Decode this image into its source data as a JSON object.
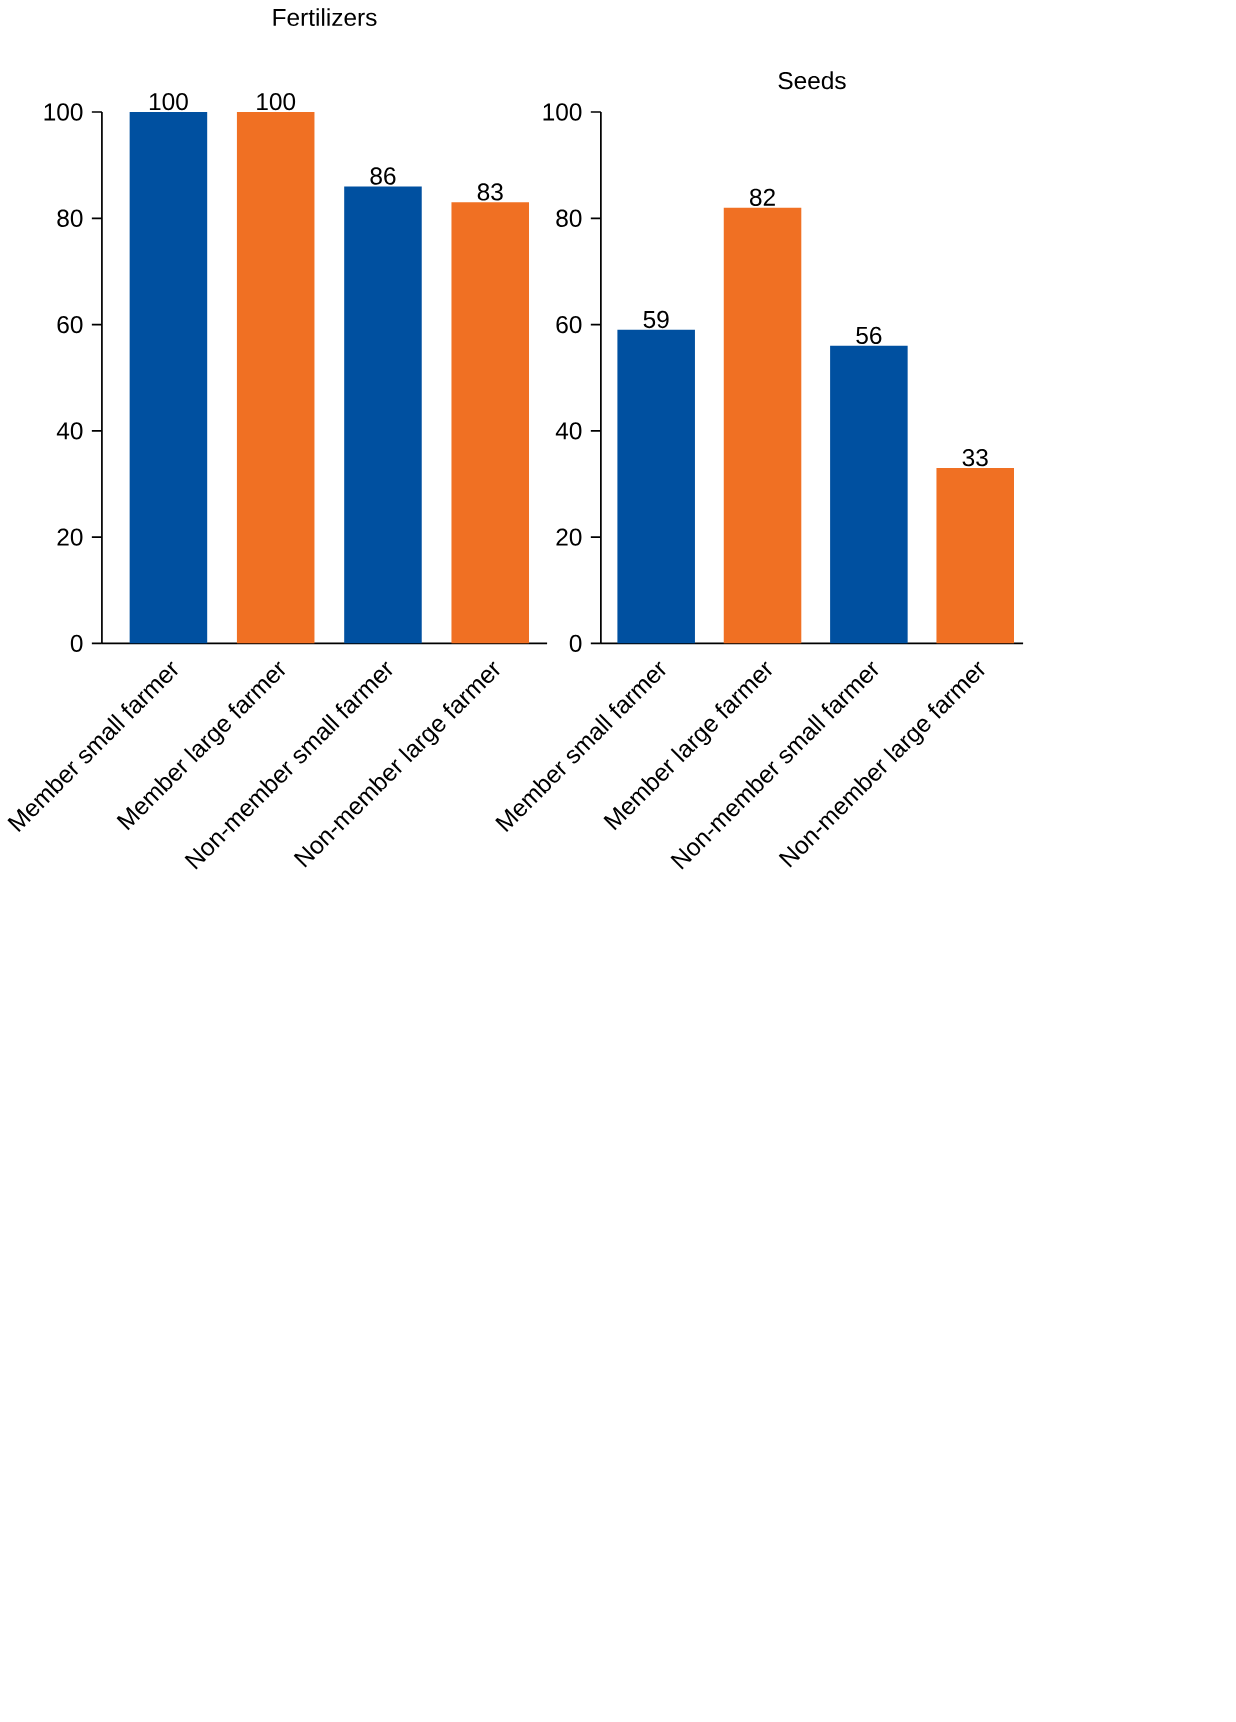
{
  "chart_data": [
    {
      "type": "bar",
      "title": "Fertilizers",
      "categories": [
        "Member small farmer",
        "Member large farmer",
        "Non-member small farmer",
        "Non-member large farmer"
      ],
      "values": [
        100,
        100,
        86,
        83
      ],
      "colors": [
        "#0050a0",
        "#f07023",
        "#0050a0",
        "#f07023"
      ],
      "ylim": [
        0,
        100
      ],
      "yticks": [
        0,
        20,
        40,
        60,
        80,
        100
      ],
      "data_labels": true
    },
    {
      "type": "bar",
      "title": "Seeds",
      "categories": [
        "Member small farmer",
        "Member large farmer",
        "Non-member small farmer",
        "Non-member large farmer"
      ],
      "values": [
        59,
        82,
        56,
        33
      ],
      "colors": [
        "#0050a0",
        "#f07023",
        "#0050a0",
        "#f07023"
      ],
      "ylim": [
        0,
        100
      ],
      "yticks": [
        0,
        20,
        40,
        60,
        80,
        100
      ],
      "data_labels": true
    }
  ]
}
